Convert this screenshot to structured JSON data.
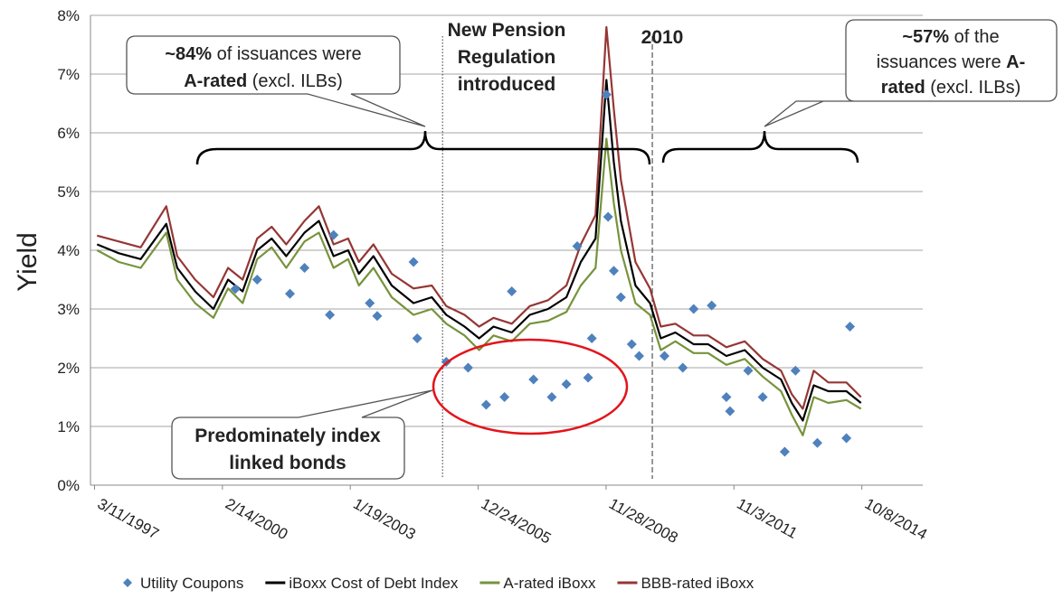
{
  "chart_data": {
    "type": "line",
    "y_axis_label": "Yield",
    "xlim": [
      "2/5/1997",
      "3/1/2016"
    ],
    "xticks": [
      "3/11/1997",
      "2/14/2000",
      "1/19/2003",
      "12/24/2005",
      "11/28/2008",
      "11/3/2011",
      "10/8/2014"
    ],
    "ylim": [
      0,
      8
    ],
    "yticks": [
      {
        "value": 0,
        "label": "0%"
      },
      {
        "value": 1,
        "label": "1%"
      },
      {
        "value": 2,
        "label": "2%"
      },
      {
        "value": 3,
        "label": "3%"
      },
      {
        "value": 4,
        "label": "4%"
      },
      {
        "value": 5,
        "label": "5%"
      },
      {
        "value": 6,
        "label": "6%"
      },
      {
        "value": 7,
        "label": "7%"
      },
      {
        "value": 8,
        "label": "8%"
      }
    ],
    "grid": true,
    "legend": "bottom",
    "x": [
      "4/1/1997",
      "10/1/1997",
      "4/1/1998",
      "11/1/1998",
      "2/1/1999",
      "7/1/1999",
      "12/1/1999",
      "4/1/2000",
      "8/1/2000",
      "12/1/2000",
      "4/1/2001",
      "8/1/2001",
      "1/1/2002",
      "5/1/2002",
      "9/1/2002",
      "1/1/2003",
      "4/1/2003",
      "8/1/2003",
      "1/1/2004",
      "7/1/2004",
      "12/1/2004",
      "4/1/2005",
      "9/1/2005",
      "1/1/2006",
      "5/1/2006",
      "10/1/2006",
      "3/1/2007",
      "8/1/2007",
      "1/1/2008",
      "5/1/2008",
      "9/1/2008",
      "12/1/2008",
      "2/1/2009",
      "4/1/2009",
      "8/1/2009",
      "12/1/2009",
      "3/1/2010",
      "7/1/2010",
      "12/1/2010",
      "4/1/2011",
      "9/1/2011",
      "2/1/2012",
      "7/1/2012",
      "12/1/2012",
      "3/1/2013",
      "6/1/2013",
      "9/1/2013",
      "1/1/2014",
      "6/1/2014",
      "10/1/2014"
    ],
    "series": [
      {
        "name": "Utility Coupons",
        "type": "scatter",
        "color": "#4f81bd",
        "x": [
          "6/1/2000",
          "12/1/2000",
          "9/1/2001",
          "1/1/2002",
          "9/1/2002",
          "8/1/2002",
          "7/1/2003",
          "9/1/2003",
          "7/1/2004",
          "8/1/2004",
          "4/1/2005",
          "10/1/2005",
          "3/1/2006",
          "10/1/2006",
          "8/1/2006",
          "4/1/2007",
          "9/1/2007",
          "1/1/2008",
          "4/1/2008",
          "7/1/2008",
          "8/1/2008",
          "12/1/2008",
          "12/15/2008",
          "2/1/2009",
          "4/1/2009",
          "7/1/2009",
          "9/1/2009",
          "4/1/2010",
          "9/1/2010",
          "12/1/2010",
          "5/1/2011",
          "9/1/2011",
          "10/1/2011",
          "3/1/2012",
          "7/1/2012",
          "1/1/2013",
          "4/1/2013",
          "10/1/2013",
          "6/1/2014",
          "7/1/2014"
        ],
        "values": [
          3.34,
          3.5,
          3.26,
          3.7,
          4.26,
          2.9,
          3.1,
          2.88,
          3.8,
          2.5,
          2.1,
          2.0,
          1.37,
          3.3,
          1.5,
          1.8,
          1.5,
          1.72,
          4.07,
          1.83,
          2.5,
          6.65,
          4.57,
          3.65,
          3.2,
          2.4,
          2.2,
          2.2,
          2.0,
          3.0,
          3.06,
          1.5,
          1.26,
          1.95,
          1.5,
          0.57,
          1.95,
          0.72,
          0.8,
          2.7
        ]
      },
      {
        "name": "iBoxx Cost of Debt Index",
        "color": "#000000",
        "values": [
          4.1,
          3.95,
          3.85,
          4.45,
          3.7,
          3.3,
          3.0,
          3.5,
          3.3,
          4.0,
          4.2,
          3.9,
          4.3,
          4.5,
          3.9,
          4.0,
          3.6,
          3.9,
          3.4,
          3.1,
          3.2,
          2.9,
          2.7,
          2.5,
          2.7,
          2.6,
          2.9,
          3.0,
          3.2,
          3.8,
          4.2,
          6.9,
          5.5,
          4.5,
          3.4,
          3.1,
          2.5,
          2.6,
          2.4,
          2.4,
          2.2,
          2.3,
          2.0,
          1.8,
          1.4,
          1.1,
          1.7,
          1.6,
          1.6,
          1.4
        ]
      },
      {
        "name": "A-rated iBoxx",
        "color": "#77933c",
        "values": [
          4.0,
          3.8,
          3.7,
          4.3,
          3.5,
          3.1,
          2.85,
          3.35,
          3.1,
          3.85,
          4.05,
          3.7,
          4.15,
          4.3,
          3.7,
          3.85,
          3.4,
          3.7,
          3.2,
          2.9,
          3.0,
          2.75,
          2.55,
          2.3,
          2.55,
          2.45,
          2.75,
          2.8,
          2.95,
          3.4,
          3.7,
          5.9,
          4.8,
          4.0,
          3.1,
          2.9,
          2.3,
          2.45,
          2.25,
          2.25,
          2.05,
          2.15,
          1.85,
          1.6,
          1.2,
          0.85,
          1.5,
          1.4,
          1.45,
          1.3
        ]
      },
      {
        "name": "BBB-rated iBoxx",
        "color": "#953735",
        "values": [
          4.25,
          4.15,
          4.05,
          4.75,
          3.9,
          3.5,
          3.2,
          3.7,
          3.5,
          4.2,
          4.4,
          4.1,
          4.5,
          4.75,
          4.1,
          4.2,
          3.8,
          4.1,
          3.6,
          3.35,
          3.4,
          3.05,
          2.9,
          2.7,
          2.85,
          2.75,
          3.05,
          3.15,
          3.4,
          4.1,
          4.6,
          7.8,
          6.4,
          5.2,
          3.8,
          3.35,
          2.7,
          2.75,
          2.55,
          2.55,
          2.35,
          2.45,
          2.15,
          1.95,
          1.55,
          1.3,
          1.95,
          1.75,
          1.75,
          1.5
        ]
      }
    ],
    "vlines": [
      {
        "x": "3/1/2005",
        "style": "dotted"
      },
      {
        "x": "12/20/2009",
        "style": "dashed"
      }
    ],
    "annotations": [
      {
        "lines": [
          [
            {
              "text": "New Pension",
              "bold": true
            }
          ],
          [
            {
              "text": "Regulation",
              "bold": true
            }
          ],
          [
            {
              "text": "introduced",
              "bold": true
            }
          ]
        ]
      },
      {
        "lines": [
          [
            {
              "text": "2010",
              "bold": true
            }
          ]
        ]
      },
      {
        "lines": [
          [
            {
              "text": "~84%",
              "bold": true
            },
            {
              "text": " of issuances were"
            }
          ],
          [
            {
              "text": "A-rated",
              "bold": true
            },
            {
              "text": " (excl. ILBs)"
            }
          ]
        ]
      },
      {
        "lines": [
          [
            {
              "text": "~57%",
              "bold": true
            },
            {
              "text": " of the"
            }
          ],
          [
            {
              "text": "issuances were "
            },
            {
              "text": "A-",
              "bold": true
            }
          ],
          [
            {
              "text": "rated",
              "bold": true
            },
            {
              "text": " (excl. ILBs)"
            }
          ]
        ]
      },
      {
        "lines": [
          [
            {
              "text": "Predominately index",
              "bold": true
            }
          ],
          [
            {
              "text": "linked bonds",
              "bold": true
            }
          ]
        ]
      }
    ]
  }
}
